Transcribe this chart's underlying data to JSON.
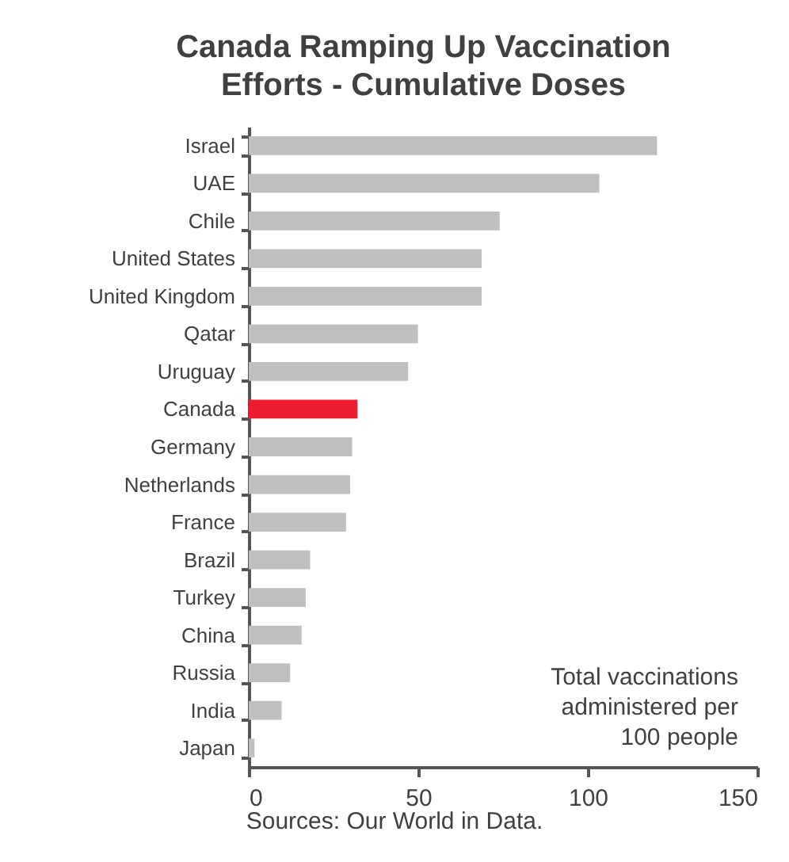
{
  "chart_data": {
    "type": "bar",
    "orientation": "horizontal",
    "title": "Canada Ramping Up Vaccination Efforts - Cumulative Doses",
    "categories": [
      "Israel",
      "UAE",
      "Chile",
      "United States",
      "United Kingdom",
      "Qatar",
      "Uruguay",
      "Canada",
      "Germany",
      "Netherlands",
      "France",
      "Brazil",
      "Turkey",
      "China",
      "Russia",
      "India",
      "Japan"
    ],
    "values": [
      120.4,
      103.4,
      74,
      68.7,
      68.7,
      49.9,
      47,
      32.1,
      30.5,
      29.9,
      28.7,
      18.1,
      16.8,
      15.6,
      12.2,
      9.7,
      1.7
    ],
    "colors": [
      "#bfbfbf",
      "#bfbfbf",
      "#bfbfbf",
      "#bfbfbf",
      "#bfbfbf",
      "#bfbfbf",
      "#bfbfbf",
      "#ed1c2e",
      "#bfbfbf",
      "#bfbfbf",
      "#bfbfbf",
      "#bfbfbf",
      "#bfbfbf",
      "#bfbfbf",
      "#bfbfbf",
      "#bfbfbf",
      "#bfbfbf"
    ],
    "xlim": [
      0,
      150
    ],
    "xticks": [
      0,
      50,
      100,
      150
    ],
    "grid": false,
    "annotations": [
      "Total vaccinations administered per 100 people",
      "Sources: Our World in Data."
    ]
  }
}
